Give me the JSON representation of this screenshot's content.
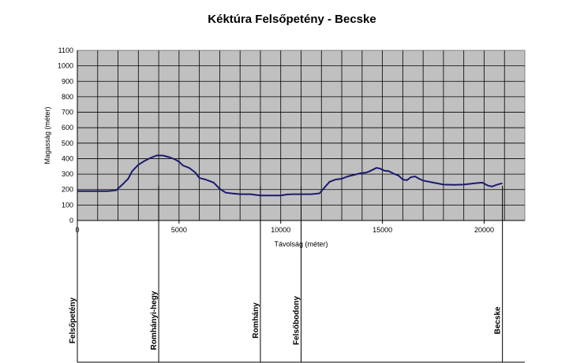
{
  "chart_data": {
    "type": "line",
    "title": "Kéktúra  Felsőpetény - Becske",
    "xlabel": "Távolság (méter)",
    "ylabel": "Magasság (méter)",
    "xlim": [
      0,
      22000
    ],
    "ylim": [
      0,
      1100
    ],
    "x_ticks": [
      0,
      5000,
      10000,
      15000,
      20000
    ],
    "y_ticks": [
      0,
      100,
      200,
      300,
      400,
      500,
      600,
      700,
      800,
      900,
      1000,
      1100
    ],
    "grid": true,
    "line_color": "#1a1a6e",
    "plot_background": "#c0c0c0",
    "series": [
      {
        "x": [
          0,
          500,
          1000,
          1500,
          1900,
          2200,
          2500,
          2700,
          3000,
          3300,
          3600,
          3900,
          4200,
          4500,
          4800,
          5000,
          5200,
          5500,
          5800,
          6000,
          6300,
          6700,
          7000,
          7300,
          7600,
          8000,
          8500,
          9000,
          9500,
          10000,
          10300,
          10600,
          11000,
          11500,
          11900,
          12100,
          12400,
          12700,
          13000,
          13300,
          13600,
          13900,
          14200,
          14400,
          14700,
          14900,
          15100,
          15300,
          15600,
          15800,
          16000,
          16200,
          16400,
          16600,
          16800,
          17000,
          17500,
          18000,
          18500,
          19000,
          19500,
          19900,
          20200,
          20400,
          20600,
          20800,
          20900
        ],
        "y": [
          190,
          190,
          190,
          190,
          195,
          230,
          270,
          320,
          360,
          385,
          405,
          420,
          420,
          410,
          395,
          380,
          355,
          340,
          310,
          275,
          265,
          245,
          205,
          180,
          175,
          170,
          170,
          162,
          162,
          162,
          168,
          170,
          170,
          170,
          175,
          205,
          250,
          265,
          270,
          285,
          295,
          305,
          310,
          320,
          340,
          335,
          322,
          320,
          300,
          290,
          265,
          260,
          280,
          285,
          270,
          258,
          245,
          232,
          230,
          232,
          240,
          245,
          225,
          220,
          230,
          238,
          240
        ]
      }
    ],
    "waypoints": [
      {
        "x": 0,
        "label": "Felsőpetény"
      },
      {
        "x": 4000,
        "label": "Romhányi-hegy"
      },
      {
        "x": 9000,
        "label": "Romhány"
      },
      {
        "x": 11000,
        "label": "Felsőbodony"
      },
      {
        "x": 20900,
        "label": "Becske"
      }
    ]
  }
}
